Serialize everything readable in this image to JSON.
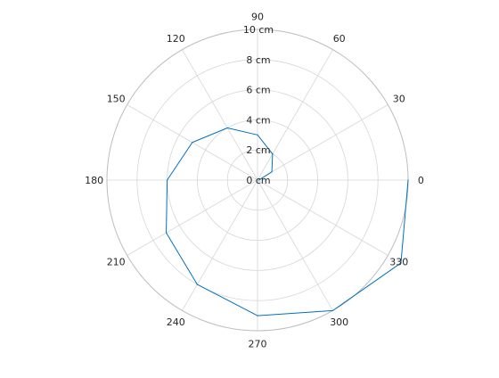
{
  "chart_data": {
    "type": "line",
    "projection": "polar",
    "theta_zero_location": "right",
    "theta_direction": "counterclockwise",
    "grid": true,
    "r_unit": "cm",
    "rlim": [
      0,
      10
    ],
    "r_ticks": [
      0,
      2,
      4,
      6,
      8,
      10
    ],
    "r_tick_labels": [
      "0 cm",
      "2 cm",
      "4 cm",
      "6 cm",
      "8 cm",
      "10 cm"
    ],
    "theta_ticks_deg": [
      0,
      30,
      60,
      90,
      120,
      150,
      180,
      210,
      240,
      270,
      300,
      330
    ],
    "theta_tick_labels": [
      "0",
      "30",
      "60",
      "90",
      "120",
      "150",
      "180",
      "210",
      "240",
      "270",
      "300",
      "330"
    ],
    "series": [
      {
        "theta_deg": [
          0,
          30,
          60,
          90,
          120,
          150,
          180,
          210,
          240,
          270,
          300,
          330,
          360
        ],
        "r": [
          0.1,
          1.1,
          2.0,
          3.0,
          4.0,
          5.0,
          6.0,
          7.0,
          8.0,
          9.0,
          10.0,
          11.0,
          10.0
        ],
        "color": "#0072BD"
      }
    ],
    "grid_color": "#d6d6d6",
    "outer_ring_color": "#bdbdbd"
  }
}
